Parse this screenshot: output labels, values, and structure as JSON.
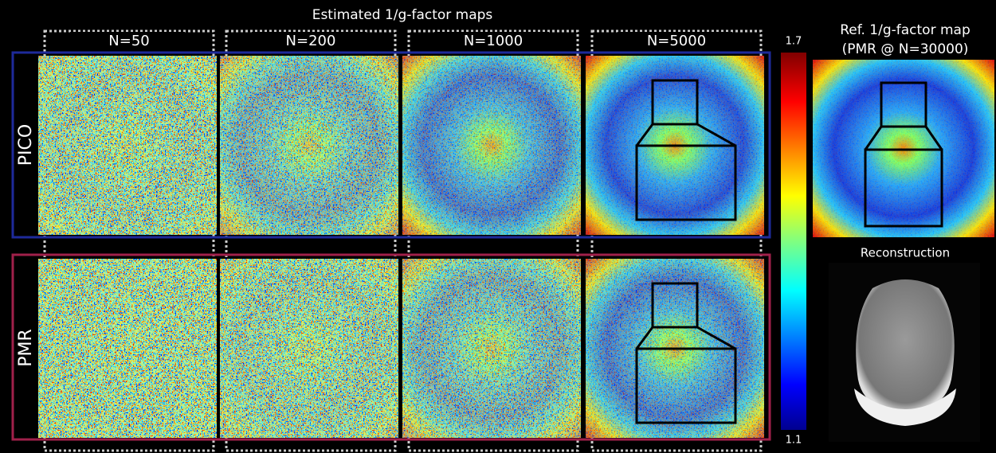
{
  "title": "Estimated 1/g-factor maps",
  "columns": [
    "N=50",
    "N=200",
    "N=1000",
    "N=5000"
  ],
  "rows": [
    "PICO",
    "PMR"
  ],
  "colorbar": {
    "max": 1.7,
    "min": 1.1
  },
  "reference": {
    "title_line1": "Ref. 1/g-factor map",
    "title_line2": "(PMR @ N=30000)"
  },
  "reconstruction_label": "Reconstruction"
}
